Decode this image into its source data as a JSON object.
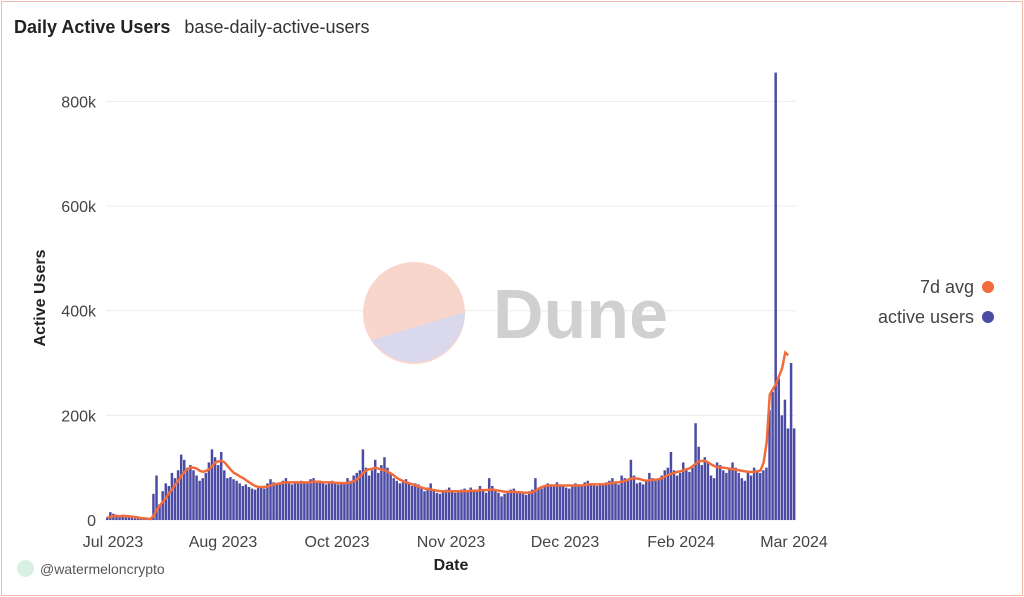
{
  "header": {
    "title": "Daily Active Users",
    "subtitle": "base-daily-active-users"
  },
  "watermark": {
    "text": "Dune"
  },
  "credit": {
    "text": "@watermeloncrypto"
  },
  "colors": {
    "bars": "#4b4ba3",
    "avg_line": "#f26b3a",
    "grid": "#ececec"
  },
  "chart_data": {
    "type": "bar",
    "xlabel": "Date",
    "ylabel": "Active Users",
    "ylim": [
      0,
      860000
    ],
    "yticks": [
      0,
      200000,
      400000,
      600000,
      800000
    ],
    "ytick_labels": [
      "0",
      "200k",
      "400k",
      "600k",
      "800k"
    ],
    "xtick_labels": [
      "Jul 2023",
      "Aug 2023",
      "Oct 2023",
      "Nov 2023",
      "Dec 2023",
      "Feb 2024",
      "Mar 2024"
    ],
    "grid": true,
    "legend_position": "right",
    "series": [
      {
        "name": "active users",
        "values": [
          5000,
          15000,
          12000,
          8000,
          6000,
          9000,
          5000,
          7000,
          4000,
          3000,
          3000,
          2000,
          2000,
          2000,
          2000,
          50000,
          85000,
          30000,
          55000,
          70000,
          65000,
          90000,
          80000,
          95000,
          125000,
          115000,
          100000,
          105000,
          95000,
          85000,
          75000,
          80000,
          90000,
          110000,
          135000,
          120000,
          105000,
          130000,
          95000,
          80000,
          82000,
          78000,
          75000,
          70000,
          65000,
          68000,
          63000,
          60000,
          58000,
          62000,
          65000,
          60000,
          70000,
          78000,
          72000,
          68000,
          70000,
          75000,
          80000,
          72000,
          68000,
          70000,
          73000,
          75000,
          72000,
          70000,
          78000,
          80000,
          75000,
          72000,
          70000,
          68000,
          73000,
          75000,
          70000,
          68000,
          72000,
          70000,
          80000,
          75000,
          85000,
          90000,
          95000,
          135000,
          100000,
          85000,
          95000,
          115000,
          90000,
          105000,
          120000,
          100000,
          88000,
          80000,
          75000,
          70000,
          72000,
          78000,
          70000,
          65000,
          70000,
          68000,
          60000,
          55000,
          62000,
          70000,
          58000,
          52000,
          50000,
          55000,
          58000,
          62000,
          55000,
          52000,
          55000,
          58000,
          60000,
          55000,
          62000,
          58000,
          55000,
          65000,
          58000,
          52000,
          80000,
          65000,
          55000,
          52000,
          45000,
          50000,
          55000,
          58000,
          60000,
          55000,
          52000,
          50000,
          48000,
          55000,
          58000,
          80000,
          62000,
          60000,
          65000,
          70000,
          68000,
          65000,
          72000,
          68000,
          65000,
          62000,
          60000,
          65000,
          70000,
          68000,
          65000,
          72000,
          75000,
          70000,
          68000,
          65000,
          70000,
          68000,
          72000,
          75000,
          80000,
          70000,
          68000,
          85000,
          80000,
          75000,
          115000,
          85000,
          70000,
          72000,
          68000,
          75000,
          90000,
          80000,
          75000,
          80000,
          85000,
          95000,
          100000,
          130000,
          95000,
          85000,
          90000,
          110000,
          95000,
          92000,
          100000,
          185000,
          140000,
          105000,
          120000,
          110000,
          85000,
          80000,
          110000,
          105000,
          95000,
          90000,
          100000,
          110000,
          100000,
          90000,
          80000,
          75000,
          90000,
          85000,
          100000,
          95000,
          90000,
          95000,
          100000,
          210000,
          245000,
          855000,
          270000,
          200000,
          230000,
          175000,
          300000,
          175000
        ]
      },
      {
        "name": "7d avg",
        "values": [
          5000,
          6000,
          7500,
          8000,
          7000,
          8000,
          7500,
          7000,
          6500,
          5500,
          4500,
          3500,
          3000,
          2500,
          2000,
          9000,
          20000,
          28000,
          35000,
          42000,
          52000,
          58000,
          68000,
          75000,
          85000,
          92000,
          98000,
          100000,
          100000,
          98000,
          94000,
          92000,
          94000,
          97000,
          103000,
          110000,
          112000,
          113000,
          110000,
          103000,
          96000,
          90000,
          87000,
          83000,
          80000,
          76000,
          72000,
          68000,
          65000,
          63000,
          63000,
          63000,
          64000,
          66000,
          68000,
          69000,
          70000,
          71000,
          72000,
          72000,
          72000,
          72000,
          72000,
          72000,
          72000,
          72000,
          72500,
          73000,
          73000,
          73000,
          72000,
          72000,
          72000,
          72000,
          71000,
          71000,
          70500,
          70500,
          71000,
          72000,
          74000,
          78000,
          83000,
          90000,
          95000,
          97000,
          98000,
          100000,
          98000,
          96000,
          95000,
          92000,
          89000,
          85000,
          80000,
          77000,
          74000,
          72000,
          70000,
          68000,
          66000,
          64000,
          62000,
          60000,
          59000,
          58000,
          57000,
          56000,
          55000,
          55000,
          55000,
          55000,
          55000,
          55000,
          55000,
          55000,
          55000,
          55000,
          56000,
          56000,
          56000,
          57000,
          57000,
          57000,
          58000,
          58000,
          57000,
          56000,
          55000,
          54000,
          54000,
          54000,
          54000,
          53000,
          53000,
          52000,
          52000,
          52000,
          53000,
          56000,
          60000,
          63000,
          65000,
          66000,
          66000,
          66000,
          66000,
          66000,
          66000,
          66000,
          66000,
          66000,
          66000,
          66000,
          66000,
          67000,
          68000,
          68000,
          68000,
          68000,
          68000,
          68000,
          69000,
          70000,
          71000,
          72000,
          72000,
          73000,
          75000,
          77000,
          79000,
          80000,
          79000,
          78000,
          76000,
          75000,
          76000,
          77000,
          77000,
          78000,
          80000,
          83000,
          86000,
          88000,
          90000,
          92000,
          93000,
          95000,
          97000,
          99000,
          103000,
          108000,
          112000,
          113000,
          113000,
          110000,
          106000,
          103000,
          101000,
          100000,
          100000,
          99000,
          98000,
          97000,
          96000,
          95000,
          94000,
          93000,
          92000,
          92000,
          92000,
          93000,
          95000,
          110000,
          150000,
          240000,
          250000,
          260000,
          275000,
          290000,
          320000,
          315000
        ]
      }
    ]
  }
}
